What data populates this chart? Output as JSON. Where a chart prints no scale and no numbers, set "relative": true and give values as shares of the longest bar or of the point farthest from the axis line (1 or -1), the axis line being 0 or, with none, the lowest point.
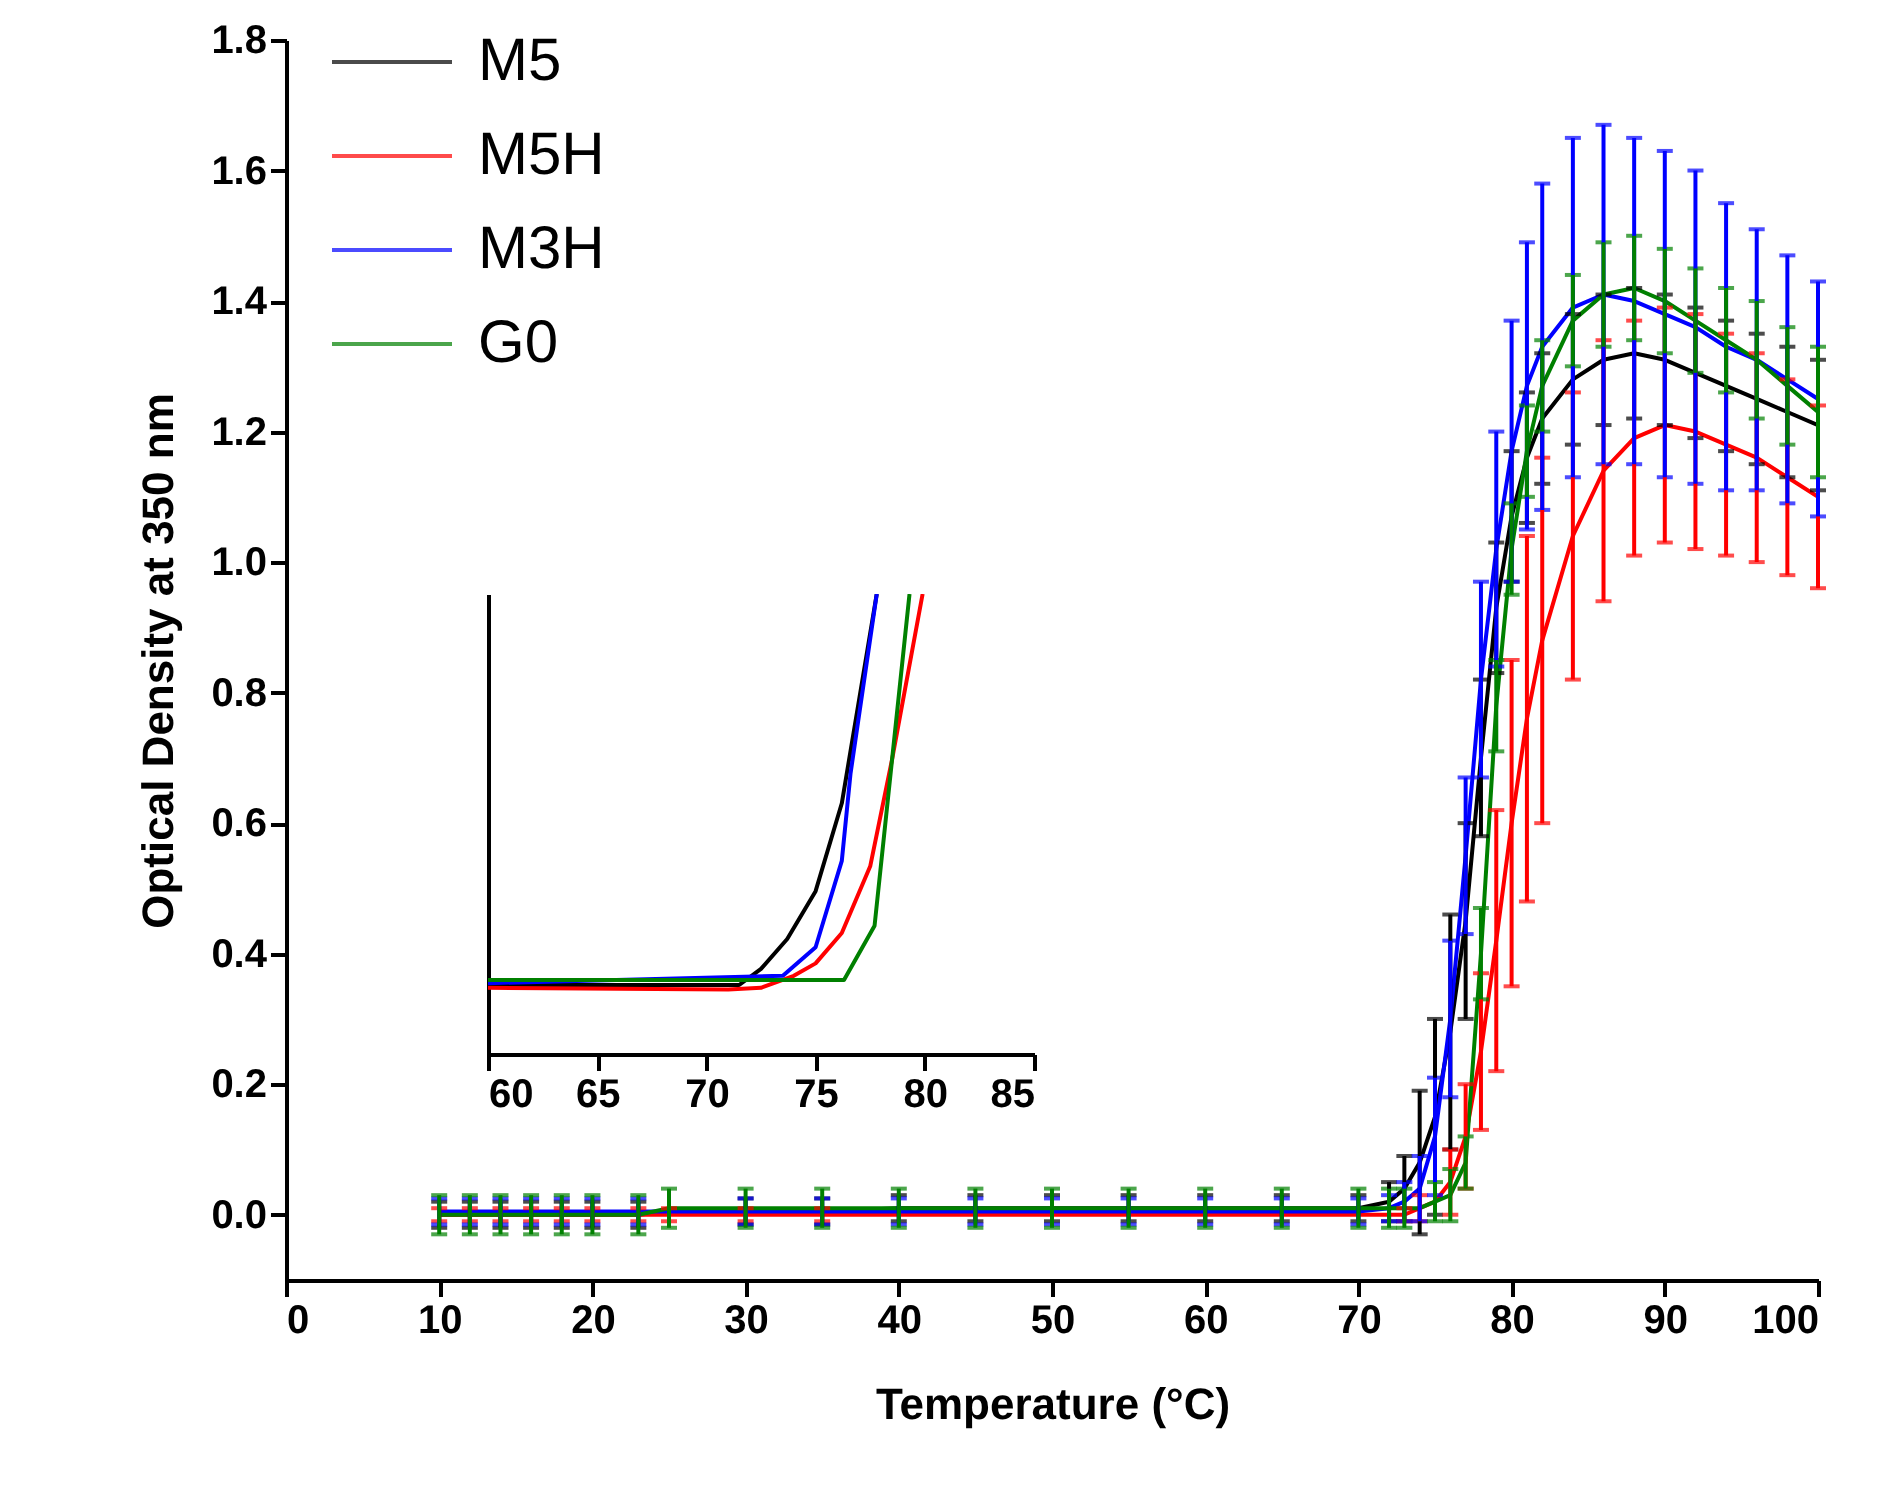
{
  "chart_data": [
    {
      "type": "line",
      "xlabel": "Temperature (°C)",
      "ylabel": "Optical Density at 350 nm",
      "xlim": [
        0,
        100
      ],
      "ylim": [
        -0.1,
        1.8
      ],
      "xticks": [
        0,
        10,
        20,
        30,
        40,
        50,
        60,
        70,
        80,
        90,
        100
      ],
      "yticks": [
        {
          "value": 0,
          "label": "0.0"
        },
        0.2,
        0.4,
        0.6,
        0.8,
        {
          "value": 1,
          "label": "1.0"
        },
        1.2,
        1.4,
        1.6,
        1.8
      ],
      "grid": false,
      "legend": "top left",
      "marker": "none",
      "x": [
        10,
        12,
        14,
        16,
        18,
        20,
        23,
        25,
        30,
        35,
        40,
        45,
        50,
        55,
        60,
        65,
        70,
        72,
        73,
        74,
        75,
        76,
        77,
        78,
        79,
        80,
        81,
        82,
        84,
        86,
        88,
        90,
        92,
        94,
        96,
        98,
        100
      ],
      "series": [
        {
          "name": "M5",
          "color": "#000000",
          "values": [
            0,
            0,
            0,
            0,
            0,
            0,
            0,
            0.005,
            0.005,
            0.005,
            0.01,
            0.01,
            0.01,
            0.01,
            0.01,
            0.01,
            0.01,
            0.02,
            0.04,
            0.08,
            0.15,
            0.28,
            0.45,
            0.7,
            0.93,
            1.07,
            1.16,
            1.22,
            1.28,
            1.31,
            1.32,
            1.31,
            1.29,
            1.27,
            1.25,
            1.23,
            1.21
          ],
          "errors": [
            0.02,
            0.02,
            0.02,
            0.02,
            0.02,
            0.02,
            0.02,
            null,
            0.02,
            0.02,
            0.02,
            0.02,
            0.02,
            0.02,
            0.02,
            0.02,
            0.02,
            0.03,
            0.05,
            0.11,
            0.15,
            0.18,
            0.15,
            0.12,
            0.1,
            0.1,
            0.1,
            0.1,
            0.1,
            0.1,
            0.1,
            0.1,
            0.1,
            0.1,
            0.1,
            0.1,
            0.1
          ]
        },
        {
          "name": "M5H",
          "color": "#ff0000",
          "values": [
            0,
            0,
            0,
            0,
            0,
            0,
            0,
            0,
            0,
            0,
            0,
            0,
            0,
            0,
            0,
            0,
            0,
            0,
            0,
            0.01,
            0.02,
            0.05,
            0.12,
            0.25,
            0.42,
            0.6,
            0.76,
            0.88,
            1.04,
            1.14,
            1.19,
            1.21,
            1.2,
            1.18,
            1.16,
            1.13,
            1.1
          ],
          "errors": [
            0.01,
            0.01,
            0.01,
            0.01,
            0.01,
            0.01,
            0.01,
            0.01,
            0.01,
            0.01,
            null,
            null,
            null,
            null,
            null,
            null,
            null,
            null,
            0.01,
            0.02,
            null,
            0.05,
            0.08,
            0.12,
            0.2,
            0.25,
            0.28,
            0.28,
            0.22,
            0.2,
            0.18,
            0.18,
            0.18,
            0.17,
            0.16,
            0.15,
            0.14
          ]
        },
        {
          "name": "M3H",
          "color": "#0000ff",
          "values": [
            0.005,
            0.005,
            0.005,
            0.005,
            0.005,
            0.005,
            0.005,
            0.005,
            0.005,
            0.005,
            0.005,
            0.005,
            0.005,
            0.005,
            0.005,
            0.005,
            0.005,
            0.01,
            0.02,
            0.04,
            0.12,
            0.3,
            0.55,
            0.82,
            1.02,
            1.17,
            1.27,
            1.33,
            1.39,
            1.41,
            1.4,
            1.38,
            1.36,
            1.33,
            1.31,
            1.28,
            1.25
          ],
          "errors": [
            0.02,
            0.02,
            0.02,
            0.02,
            0.02,
            0.02,
            0.02,
            null,
            0.02,
            0.02,
            0.02,
            0.02,
            0.02,
            0.02,
            0.02,
            0.02,
            0.02,
            0.02,
            0.03,
            0.05,
            0.09,
            0.12,
            0.12,
            0.15,
            0.18,
            0.2,
            0.22,
            0.25,
            0.26,
            0.26,
            0.25,
            0.25,
            0.24,
            0.22,
            0.2,
            0.19,
            0.18
          ]
        },
        {
          "name": "G0",
          "color": "#008000",
          "values": [
            0,
            0,
            0,
            0,
            0,
            0,
            0,
            0.01,
            0.01,
            0.01,
            0.01,
            0.01,
            0.01,
            0.01,
            0.01,
            0.01,
            0.01,
            0.01,
            0.01,
            0.01,
            0.02,
            0.03,
            0.08,
            0.4,
            0.78,
            1.02,
            1.17,
            1.27,
            1.37,
            1.41,
            1.42,
            1.4,
            1.37,
            1.34,
            1.31,
            1.27,
            1.23
          ],
          "errors": [
            0.03,
            0.03,
            0.03,
            0.03,
            0.03,
            0.03,
            0.03,
            0.03,
            0.03,
            0.03,
            0.03,
            0.03,
            0.03,
            0.03,
            0.03,
            0.03,
            0.03,
            0.03,
            0.03,
            null,
            0.03,
            0.04,
            0.04,
            0.07,
            0.07,
            0.07,
            0.07,
            0.07,
            0.07,
            0.08,
            0.08,
            0.08,
            0.08,
            0.08,
            0.09,
            0.09,
            0.1
          ]
        }
      ]
    },
    {
      "type": "line",
      "relative": true,
      "xlim": [
        60,
        85
      ],
      "xticks": [
        60,
        65,
        70,
        75,
        80,
        85
      ],
      "tick_labels": "x",
      "grid": false,
      "legend": false,
      "marker": "none",
      "series": [
        {
          "color": "#000000",
          "x": [
            60,
            71.5,
            72.5,
            73.7,
            75,
            76.2,
            77.8
          ],
          "values": [
            0.15,
            0.15,
            0.185,
            0.25,
            0.354,
            0.545,
            1
          ]
        },
        {
          "color": "#ff0000",
          "x": [
            60,
            71,
            72.5,
            74,
            75,
            76.2,
            77.5,
            78.5,
            79.9
          ],
          "values": [
            0.144,
            0.14,
            0.144,
            0.17,
            0.197,
            0.263,
            0.408,
            0.64,
            1
          ]
        },
        {
          "color": "#0000ff",
          "x": [
            60,
            73.5,
            75,
            76.2,
            76.6,
            77.8
          ],
          "values": [
            0.154,
            0.17,
            0.232,
            0.42,
            0.61,
            1
          ]
        },
        {
          "color": "#008000",
          "x": [
            60,
            76.3,
            77.7,
            79.3
          ],
          "values": [
            0.161,
            0.161,
            0.279,
            1
          ]
        }
      ]
    }
  ]
}
